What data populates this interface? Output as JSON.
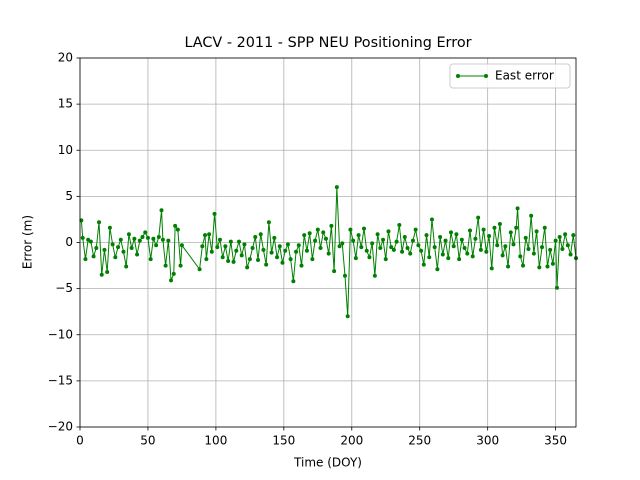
{
  "chart_data": {
    "type": "line",
    "title": "LACV - 2011 - SPP NEU Positioning Error",
    "x_label": "Time (DOY)",
    "y_label": "Error (m)",
    "xlim": [
      0,
      365
    ],
    "ylim": [
      -20,
      20
    ],
    "xticks": [
      0,
      50,
      100,
      150,
      200,
      250,
      300,
      350
    ],
    "yticks": [
      {
        "value": -20,
        "label": "−20"
      },
      {
        "value": -15,
        "label": "−15"
      },
      {
        "value": -10,
        "label": "−10"
      },
      {
        "value": -5,
        "label": "−5"
      },
      0,
      5,
      10,
      15,
      20
    ],
    "grid": true,
    "legend": "upper right",
    "x": [
      1,
      2,
      4,
      6,
      8,
      10,
      12,
      14,
      16,
      18,
      20,
      22,
      24,
      26,
      28,
      30,
      32,
      34,
      36,
      38,
      40,
      42,
      44,
      46,
      48,
      50,
      52,
      54,
      56,
      58,
      60,
      61,
      63,
      65,
      67,
      69,
      70,
      72,
      74,
      75,
      88,
      90,
      92,
      93,
      95,
      97,
      99,
      101,
      103,
      105,
      107,
      109,
      111,
      113,
      115,
      117,
      119,
      121,
      123,
      125,
      127,
      129,
      131,
      133,
      135,
      137,
      139,
      141,
      143,
      145,
      147,
      149,
      151,
      153,
      155,
      157,
      159,
      161,
      163,
      165,
      167,
      169,
      171,
      173,
      175,
      177,
      179,
      181,
      183,
      185,
      187,
      189,
      191,
      193,
      195,
      197,
      199,
      201,
      203,
      205,
      207,
      209,
      211,
      213,
      215,
      217,
      219,
      221,
      223,
      225,
      227,
      229,
      231,
      233,
      235,
      237,
      239,
      241,
      243,
      245,
      247,
      249,
      251,
      253,
      255,
      257,
      259,
      261,
      263,
      265,
      267,
      269,
      271,
      273,
      275,
      277,
      279,
      281,
      283,
      285,
      287,
      289,
      291,
      293,
      295,
      297,
      299,
      301,
      303,
      305,
      307,
      309,
      311,
      313,
      315,
      317,
      319,
      321,
      322,
      324,
      326,
      328,
      330,
      332,
      334,
      336,
      338,
      340,
      342,
      344,
      346,
      348,
      350,
      351,
      353,
      355,
      357,
      359,
      361,
      363,
      365
    ],
    "series": [
      {
        "name": "East error",
        "color": "#008000",
        "values": [
          2.4,
          0.5,
          -1.8,
          0.3,
          0.1,
          -1.5,
          -0.6,
          2.2,
          -3.5,
          -0.8,
          -3.2,
          1.6,
          -0.2,
          -1.6,
          -0.5,
          0.3,
          -1.0,
          -2.6,
          0.9,
          -0.6,
          0.4,
          -1.3,
          0.2,
          0.6,
          1.1,
          0.5,
          -1.8,
          0.4,
          -0.3,
          0.6,
          3.5,
          0.3,
          -2.5,
          0.2,
          -4.1,
          -3.4,
          1.8,
          1.4,
          -2.5,
          -0.3,
          -2.9,
          -0.4,
          0.8,
          -1.8,
          0.9,
          -1.0,
          3.1,
          -0.5,
          0.3,
          -1.6,
          -0.4,
          -2.0,
          0.1,
          -2.1,
          -0.9,
          0.1,
          -1.4,
          -0.2,
          -2.7,
          -1.8,
          -0.6,
          0.6,
          -1.9,
          0.9,
          -0.8,
          -2.4,
          2.2,
          -1.1,
          0.5,
          -1.6,
          -0.4,
          -2.2,
          -0.9,
          -0.2,
          -1.8,
          -4.2,
          -1.0,
          -0.3,
          -2.5,
          0.8,
          -0.9,
          1.0,
          -1.8,
          0.2,
          1.4,
          -0.6,
          1.1,
          0.4,
          -1.2,
          1.8,
          -3.1,
          6.0,
          -0.4,
          -0.1,
          -3.6,
          -8.0,
          1.4,
          0.2,
          -1.7,
          0.8,
          -0.5,
          1.5,
          -0.9,
          -1.6,
          -0.1,
          -3.6,
          0.9,
          -0.6,
          0.3,
          -1.8,
          1.2,
          -0.5,
          -0.8,
          0.1,
          1.9,
          -1.0,
          0.6,
          -0.6,
          -1.2,
          0.2,
          1.4,
          -0.3,
          -0.9,
          -2.4,
          0.8,
          -1.6,
          2.5,
          -0.5,
          -2.9,
          0.6,
          -1.3,
          0.2,
          -1.7,
          1.1,
          -0.4,
          0.9,
          -1.8,
          0.3,
          -0.6,
          -1.2,
          1.3,
          -1.5,
          0.4,
          2.7,
          -0.8,
          1.4,
          -1.0,
          0.7,
          -2.8,
          1.6,
          -0.3,
          2.0,
          -1.4,
          -0.4,
          -2.6,
          1.1,
          -0.2,
          1.6,
          3.7,
          -1.5,
          -2.5,
          0.5,
          -0.7,
          2.9,
          -1.2,
          1.2,
          -2.7,
          -0.5,
          1.6,
          -2.6,
          -0.8,
          -2.3,
          0.2,
          -4.9,
          0.6,
          -0.7,
          0.9,
          -0.3,
          -1.3,
          0.8,
          -1.7
        ]
      }
    ]
  }
}
